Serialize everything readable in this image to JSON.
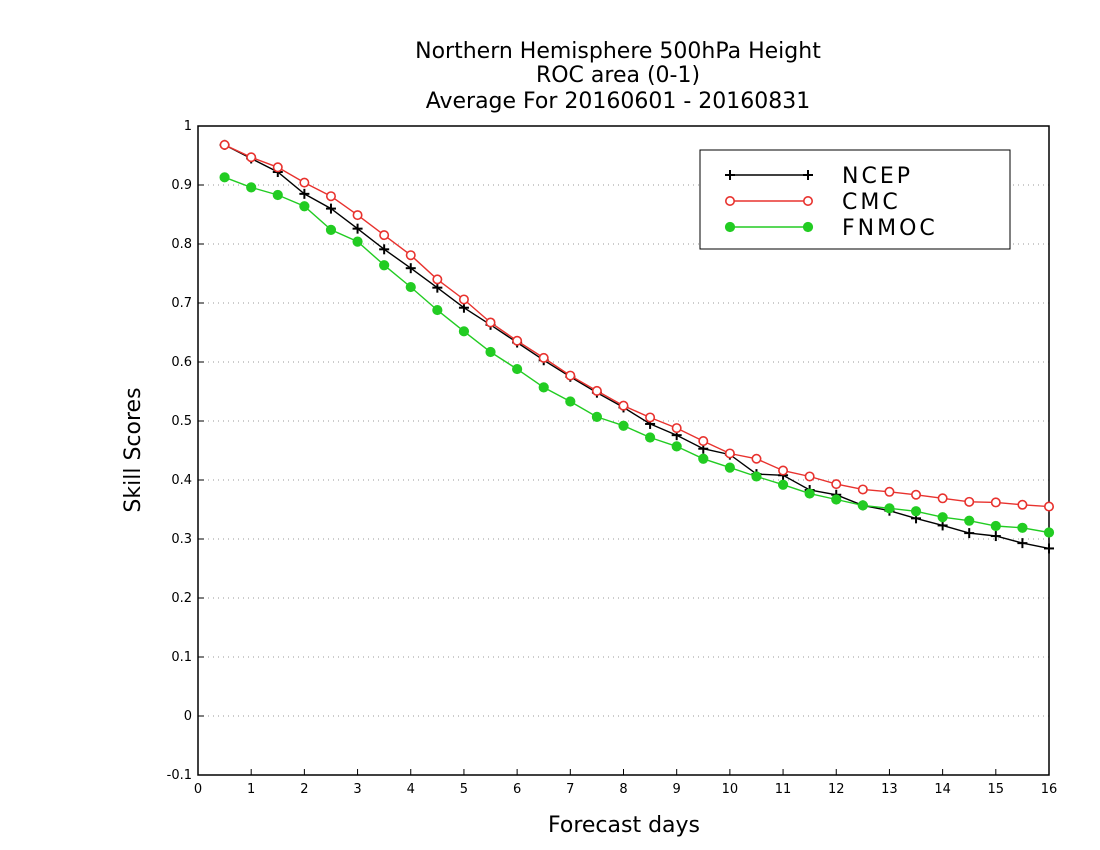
{
  "chart_data": {
    "type": "line",
    "title_lines": [
      "Northern Hemisphere 500hPa Height",
      "ROC area (0-1)",
      "Average For 20160601 - 20160831"
    ],
    "xlabel": "Forecast days",
    "ylabel": "Skill Scores",
    "xlim": [
      0,
      16
    ],
    "ylim": [
      -0.1,
      1
    ],
    "x_ticks": [
      "0",
      "1",
      "2",
      "3",
      "4",
      "5",
      "6",
      "7",
      "8",
      "9",
      "10",
      "11",
      "12",
      "13",
      "14",
      "15",
      "16"
    ],
    "y_ticks": [
      "-0.1",
      "0",
      "0.1",
      "0.2",
      "0.3",
      "0.4",
      "0.5",
      "0.6",
      "0.7",
      "0.8",
      "0.9",
      "1"
    ],
    "y_tick_values": [
      -0.1,
      0,
      0.1,
      0.2,
      0.3,
      0.4,
      0.5,
      0.6,
      0.7,
      0.8,
      0.9,
      1
    ],
    "grid": "horizontal dotted",
    "legend_position": "top-right",
    "x": [
      0.5,
      1,
      1.5,
      2,
      2.5,
      3,
      3.5,
      4,
      4.5,
      5,
      5.5,
      6,
      6.5,
      7,
      7.5,
      8,
      8.5,
      9,
      9.5,
      10,
      10.5,
      11,
      11.5,
      12,
      12.5,
      13,
      13.5,
      14,
      14.5,
      15,
      15.5,
      16
    ],
    "series": [
      {
        "name": "NCEP",
        "color": "#000000",
        "marker": "plus",
        "values": [
          0.968,
          0.945,
          0.922,
          0.885,
          0.86,
          0.826,
          0.791,
          0.759,
          0.726,
          0.692,
          0.663,
          0.633,
          0.603,
          0.575,
          0.548,
          0.523,
          0.495,
          0.476,
          0.453,
          0.443,
          0.41,
          0.408,
          0.383,
          0.375,
          0.357,
          0.348,
          0.335,
          0.323,
          0.31,
          0.305,
          0.293,
          0.284
        ]
      },
      {
        "name": "CMC",
        "color": "#e8322e",
        "marker": "open-circle",
        "values": [
          0.968,
          0.947,
          0.93,
          0.904,
          0.881,
          0.849,
          0.815,
          0.781,
          0.74,
          0.706,
          0.667,
          0.636,
          0.607,
          0.577,
          0.551,
          0.526,
          0.506,
          0.488,
          0.466,
          0.445,
          0.436,
          0.416,
          0.406,
          0.393,
          0.384,
          0.38,
          0.375,
          0.369,
          0.363,
          0.362,
          0.358,
          0.355
        ]
      },
      {
        "name": "FNMOC",
        "color": "#22cc22",
        "marker": "filled-circle",
        "values": [
          0.913,
          0.896,
          0.883,
          0.864,
          0.824,
          0.804,
          0.764,
          0.727,
          0.688,
          0.652,
          0.617,
          0.588,
          0.557,
          0.533,
          0.507,
          0.492,
          0.472,
          0.457,
          0.436,
          0.421,
          0.406,
          0.392,
          0.377,
          0.367,
          0.357,
          0.352,
          0.347,
          0.337,
          0.331,
          0.322,
          0.319,
          0.311
        ]
      }
    ]
  }
}
